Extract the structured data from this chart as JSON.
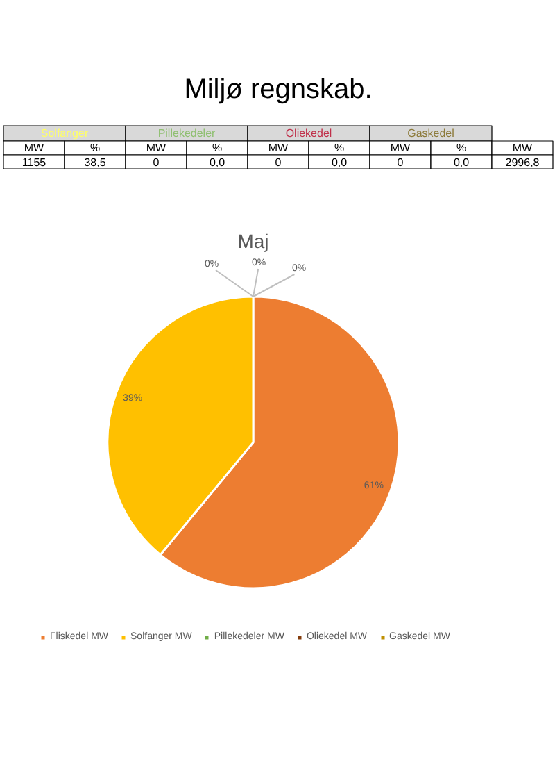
{
  "chart_data": [
    {
      "type": "other",
      "title": "Miljø regnskab.",
      "annotations": [
        "Solfanger",
        "Pillekedeler",
        "Oliekedel",
        "Gaskedel",
        "MW",
        "%",
        "MW",
        "%",
        "MW",
        "%",
        "MW",
        "%",
        "MW",
        "1155",
        "38,5",
        "0",
        "0,0",
        "0",
        "0,0",
        "0",
        "0,0",
        "2996,8"
      ],
      "colors": [
        "#ffff66",
        "#8fbf70",
        "#c0304a",
        "#8c7a3a"
      ]
    },
    {
      "type": "pie",
      "title": "Maj",
      "categories": [
        "Fliskedel MW",
        "Solfanger MW",
        "Pillekedeler MW",
        "Oliekedel MW",
        "Gaskedel MW"
      ],
      "values": [
        61,
        39,
        0,
        0,
        0
      ],
      "colors": [
        "#ed7d31",
        "#ffc000",
        "#70ad47",
        "#843c0c",
        "#bf8f00"
      ],
      "value_labels": [
        "61%",
        "39%",
        "0%",
        "0%",
        "0%"
      ],
      "legend": "bottom"
    }
  ]
}
